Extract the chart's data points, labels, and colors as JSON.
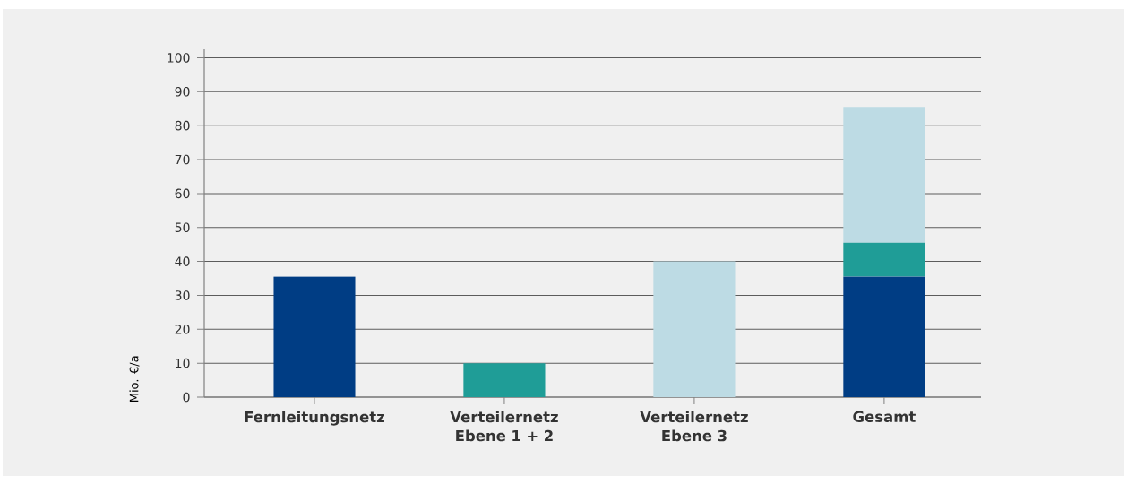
{
  "chart_data": {
    "type": "bar",
    "stacked": true,
    "categories": [
      "Fernleitungsnetz",
      "Verteilernetz Ebene 1 + 2",
      "Verteilernetz Ebene 3",
      "Gesamt"
    ],
    "ylabel": "Mio. €/a",
    "series": [
      {
        "color": "#003d84",
        "values": [
          35.5,
          null,
          null,
          35.5
        ]
      },
      {
        "color": "#1f9d97",
        "values": [
          null,
          10,
          null,
          10
        ]
      },
      {
        "color": "#bddbe4",
        "values": [
          null,
          null,
          40,
          40
        ]
      }
    ],
    "ylim": [
      0,
      102.5
    ],
    "yticks": [
      0,
      10,
      20,
      30,
      40,
      50,
      60,
      70,
      80,
      90,
      100
    ],
    "grid": "y"
  }
}
